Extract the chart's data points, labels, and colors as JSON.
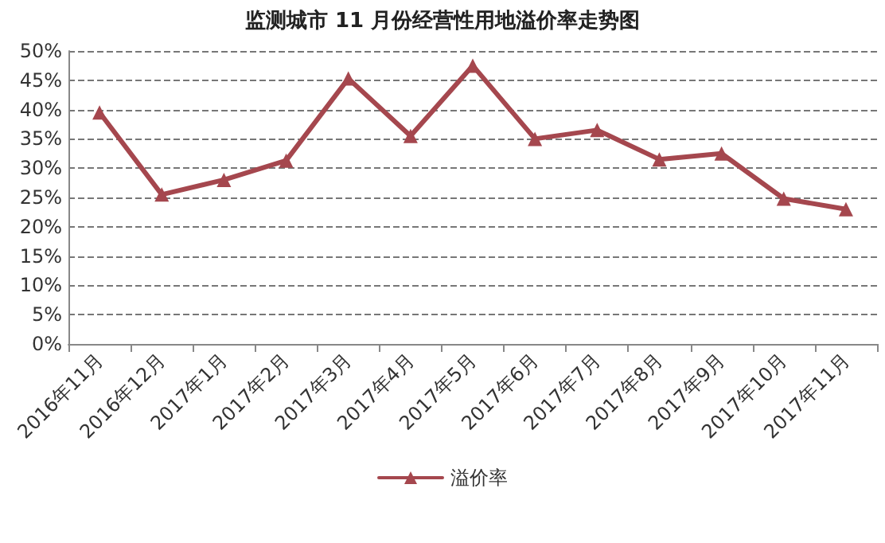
{
  "chart_data": {
    "type": "line",
    "title": "监测城市 11 月份经营性用地溢价率走势图",
    "categories": [
      "2016年11月",
      "2016年12月",
      "2017年1月",
      "2017年2月",
      "2017年3月",
      "2017年4月",
      "2017年5月",
      "2017年6月",
      "2017年7月",
      "2017年8月",
      "2017年9月",
      "2017年10月",
      "2017年11月"
    ],
    "series": [
      {
        "name": "溢价率",
        "color": "#a5474e",
        "values": [
          39.5,
          25.5,
          28,
          31.3,
          45.3,
          35.5,
          47.5,
          35,
          36.5,
          31.5,
          32.5,
          24.8,
          23
        ]
      }
    ],
    "ylim": [
      0,
      50
    ],
    "yticks": [
      {
        "value": 0,
        "label": "0%"
      },
      {
        "value": 5,
        "label": "5%"
      },
      {
        "value": 10,
        "label": "10%"
      },
      {
        "value": 15,
        "label": "15%"
      },
      {
        "value": 20,
        "label": "20%"
      },
      {
        "value": 25,
        "label": "25%"
      },
      {
        "value": 30,
        "label": "30%"
      },
      {
        "value": 35,
        "label": "35%"
      },
      {
        "value": 40,
        "label": "40%"
      },
      {
        "value": 45,
        "label": "45%"
      },
      {
        "value": 50,
        "label": "50%"
      }
    ],
    "grid": "y",
    "legend": "bottom",
    "marker": "triangle",
    "line_style": "solid"
  }
}
